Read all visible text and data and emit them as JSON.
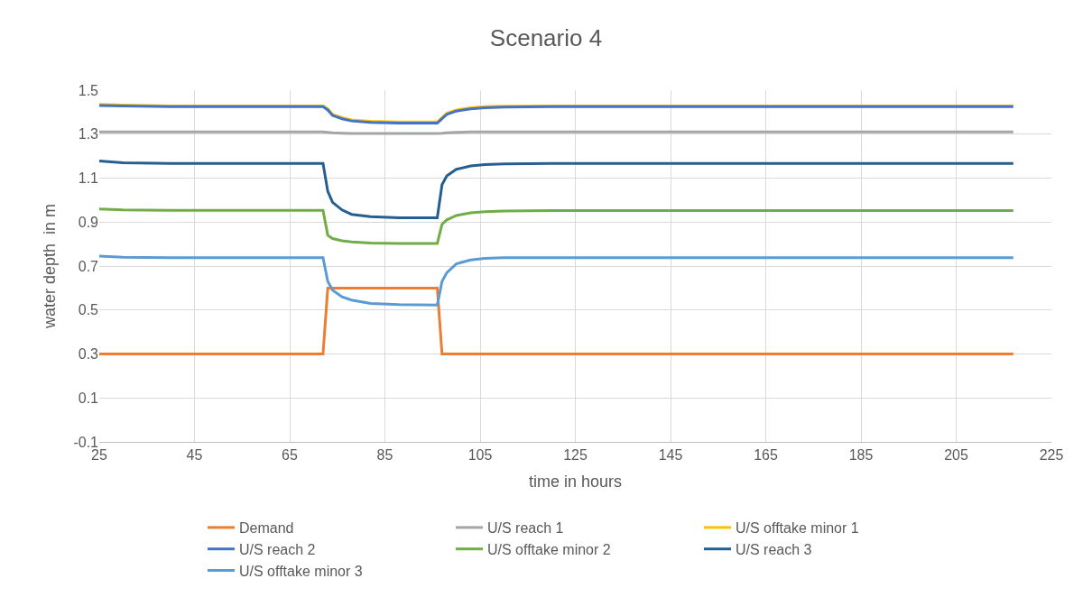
{
  "chart_data": {
    "type": "line",
    "title": "Scenario 4",
    "xlabel": "time in hours",
    "ylabel": "water depth  in m",
    "x": [
      25,
      30,
      40,
      72,
      73,
      74,
      76,
      78,
      82,
      88,
      96,
      97,
      98,
      100,
      103,
      106,
      110,
      120,
      217
    ],
    "series": [
      {
        "name": "Demand",
        "color": "#ed7d31",
        "x": [
          25,
          72,
          73,
          96,
          97,
          217
        ],
        "values": [
          0.3,
          0.3,
          0.6,
          0.6,
          0.3,
          0.3
        ]
      },
      {
        "name": "U/S reach 1",
        "color": "#a5a5a5",
        "values": [
          1.31,
          1.31,
          1.31,
          1.31,
          1.308,
          1.306,
          1.304,
          1.303,
          1.303,
          1.303,
          1.303,
          1.304,
          1.306,
          1.308,
          1.31,
          1.31,
          1.31,
          1.31,
          1.31
        ]
      },
      {
        "name": "U/S offtake minor 1",
        "color": "#ffc000",
        "values": [
          1.435,
          1.432,
          1.428,
          1.428,
          1.415,
          1.39,
          1.375,
          1.365,
          1.358,
          1.355,
          1.355,
          1.375,
          1.395,
          1.41,
          1.42,
          1.425,
          1.427,
          1.428,
          1.428
        ]
      },
      {
        "name": "U/S reach 2",
        "color": "#4472c4",
        "values": [
          1.43,
          1.428,
          1.425,
          1.425,
          1.41,
          1.385,
          1.37,
          1.36,
          1.353,
          1.35,
          1.35,
          1.37,
          1.39,
          1.405,
          1.415,
          1.42,
          1.423,
          1.425,
          1.425
        ]
      },
      {
        "name": "U/S offtake minor 2",
        "color": "#70ad47",
        "values": [
          0.96,
          0.955,
          0.953,
          0.953,
          0.84,
          0.825,
          0.815,
          0.81,
          0.805,
          0.803,
          0.803,
          0.89,
          0.91,
          0.93,
          0.942,
          0.947,
          0.95,
          0.952,
          0.952
        ]
      },
      {
        "name": "U/S reach 3",
        "color": "#255e91",
        "values": [
          1.178,
          1.17,
          1.167,
          1.167,
          1.04,
          0.99,
          0.955,
          0.935,
          0.925,
          0.92,
          0.92,
          1.07,
          1.11,
          1.14,
          1.155,
          1.162,
          1.165,
          1.167,
          1.167
        ]
      },
      {
        "name": "U/S offtake minor 3",
        "color": "#5b9bd5",
        "values": [
          0.745,
          0.74,
          0.738,
          0.738,
          0.63,
          0.59,
          0.56,
          0.545,
          0.53,
          0.525,
          0.523,
          0.63,
          0.67,
          0.71,
          0.728,
          0.735,
          0.738,
          0.738,
          0.738
        ]
      }
    ],
    "xlim": [
      25,
      225
    ],
    "xticks": [
      25,
      45,
      65,
      85,
      105,
      125,
      145,
      165,
      185,
      205,
      225
    ],
    "ylim": [
      -0.1,
      1.5
    ],
    "yticks": [
      {
        "value": -0.1,
        "label": "-0.1"
      },
      0.1,
      0.3,
      0.5,
      0.7,
      0.9,
      1.1,
      1.3,
      1.5
    ],
    "grid": true,
    "legend": "bottom",
    "marker": "none",
    "line_style": "solid"
  }
}
